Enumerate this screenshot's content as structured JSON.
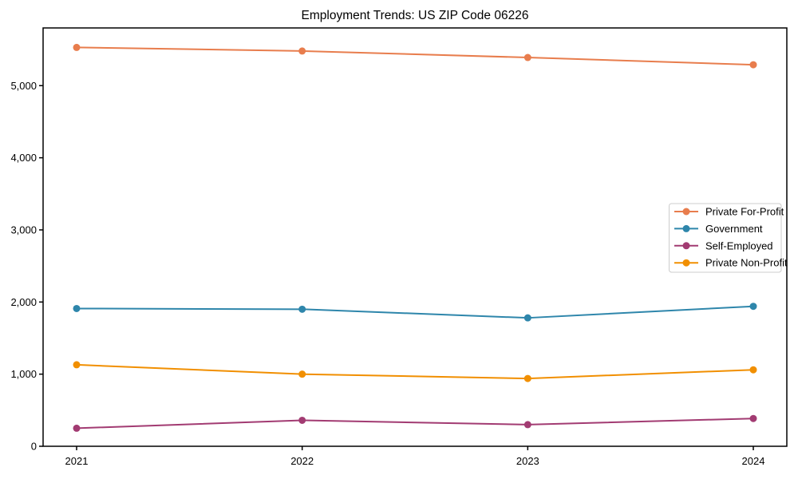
{
  "chart_data": {
    "type": "line",
    "title": "Employment Trends: US ZIP Code 06226",
    "xlabel": "",
    "ylabel": "",
    "x": [
      2021,
      2022,
      2023,
      2024
    ],
    "x_tick_labels": [
      "2021",
      "2022",
      "2023",
      "2024"
    ],
    "y_tick_values": [
      0,
      1000,
      2000,
      3000,
      4000,
      5000
    ],
    "y_tick_labels": [
      "0",
      "1,000",
      "2,000",
      "3,000",
      "4,000",
      "5,000"
    ],
    "ylim": [
      0,
      5800
    ],
    "grid": false,
    "legend_position": "center-right",
    "marker": "circle",
    "series": [
      {
        "name": "Private For-Profit",
        "color": "#E87D4D",
        "values": [
          5530,
          5480,
          5390,
          5290
        ]
      },
      {
        "name": "Government",
        "color": "#2E86AB",
        "values": [
          1910,
          1900,
          1780,
          1940
        ]
      },
      {
        "name": "Self-Employed",
        "color": "#A23B72",
        "values": [
          250,
          360,
          300,
          385
        ]
      },
      {
        "name": "Private Non-Profit",
        "color": "#F18F01",
        "values": [
          1130,
          1000,
          940,
          1060
        ]
      }
    ],
    "colors": {
      "axis": "#000000",
      "legend_border": "#cccccc",
      "background": "#ffffff"
    }
  }
}
